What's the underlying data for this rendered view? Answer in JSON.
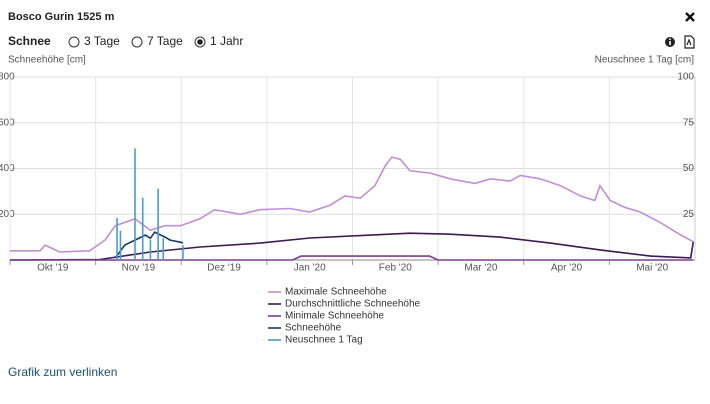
{
  "header": {
    "title": "Bosco Gurin 1525 m"
  },
  "controls": {
    "label": "Schnee",
    "options": [
      {
        "label": "3 Tage",
        "selected": false
      },
      {
        "label": "7 Tage",
        "selected": false
      },
      {
        "label": "1 Jahr",
        "selected": true
      }
    ]
  },
  "chart_data": {
    "type": "line",
    "y_label": "Schneehöhe [cm]",
    "y2_label": "Neuschnee 1 Tag [cm]",
    "xlim": [
      0,
      8
    ],
    "xticks": [
      {
        "value": 0,
        "label": "Okt '19"
      },
      {
        "value": 1,
        "label": "Nov '19"
      },
      {
        "value": 2,
        "label": "Dez '19"
      },
      {
        "value": 3,
        "label": "Jan '20"
      },
      {
        "value": 4,
        "label": "Feb '20"
      },
      {
        "value": 5,
        "label": "Mar '20"
      },
      {
        "value": 6,
        "label": "Apr '20"
      },
      {
        "value": 7,
        "label": "Mai '20"
      }
    ],
    "ylim": [
      0,
      800
    ],
    "yticks": [
      200,
      400,
      600,
      800
    ],
    "y2lim": [
      0,
      100
    ],
    "y2ticks": [
      25,
      50,
      75,
      100
    ],
    "grid": true,
    "series": [
      {
        "name": "Maximale Schneehöhe",
        "color": "#c08fd6",
        "type": "line",
        "x": [
          0,
          0.35,
          0.41,
          0.58,
          0.93,
          1.11,
          1.23,
          1.46,
          1.64,
          1.81,
          1.99,
          2.22,
          2.39,
          2.69,
          2.92,
          3.27,
          3.5,
          3.74,
          3.91,
          4.09,
          4.26,
          4.38,
          4.46,
          4.56,
          4.67,
          4.91,
          5.14,
          5.43,
          5.61,
          5.84,
          5.96,
          6.19,
          6.43,
          6.66,
          6.83,
          6.89,
          7.01,
          7.18,
          7.36,
          7.59,
          7.83,
          7.98
        ],
        "values": [
          40,
          40,
          65,
          35,
          40,
          87,
          150,
          180,
          130,
          150,
          150,
          180,
          220,
          200,
          220,
          225,
          210,
          240,
          280,
          270,
          325,
          410,
          450,
          440,
          390,
          380,
          355,
          335,
          355,
          345,
          370,
          355,
          325,
          280,
          260,
          325,
          260,
          230,
          210,
          165,
          110,
          80
        ]
      },
      {
        "name": "Durchschnittliche Schneehöhe",
        "color": "#3d1a4f",
        "type": "line",
        "x": [
          0,
          1.05,
          1.64,
          2.22,
          2.92,
          3.5,
          4.21,
          4.67,
          5.14,
          5.72,
          6.31,
          6.89,
          7.48,
          7.95,
          7.98
        ],
        "values": [
          0,
          2,
          35,
          57,
          74,
          96,
          109,
          117,
          113,
          100,
          74,
          44,
          17,
          9,
          80
        ]
      },
      {
        "name": "Minimale Schneehöhe",
        "color": "#7b3f8f",
        "type": "line",
        "x": [
          0,
          3.3,
          3.4,
          4.9,
          5.0,
          7.98
        ],
        "values": [
          0,
          0,
          17,
          17,
          0,
          0
        ]
      },
      {
        "name": "Schneehöhe",
        "color": "#1c3a5e",
        "type": "line",
        "x": [
          1.23,
          1.34,
          1.46,
          1.58,
          1.64,
          1.69,
          1.81,
          1.87,
          1.99,
          2.02
        ],
        "values": [
          9,
          65,
          87,
          109,
          95,
          122,
          100,
          87,
          78,
          75
        ]
      },
      {
        "name": "Neuschnee 1 Tag",
        "color": "#4a9ccc",
        "type": "bar",
        "axis": "y2",
        "x": [
          1.25,
          1.29,
          1.46,
          1.55,
          1.64,
          1.73,
          1.79,
          2.02
        ],
        "values": [
          23,
          16,
          61,
          34,
          11,
          39,
          12,
          8
        ]
      }
    ]
  },
  "link": "Grafik zum verlinken"
}
